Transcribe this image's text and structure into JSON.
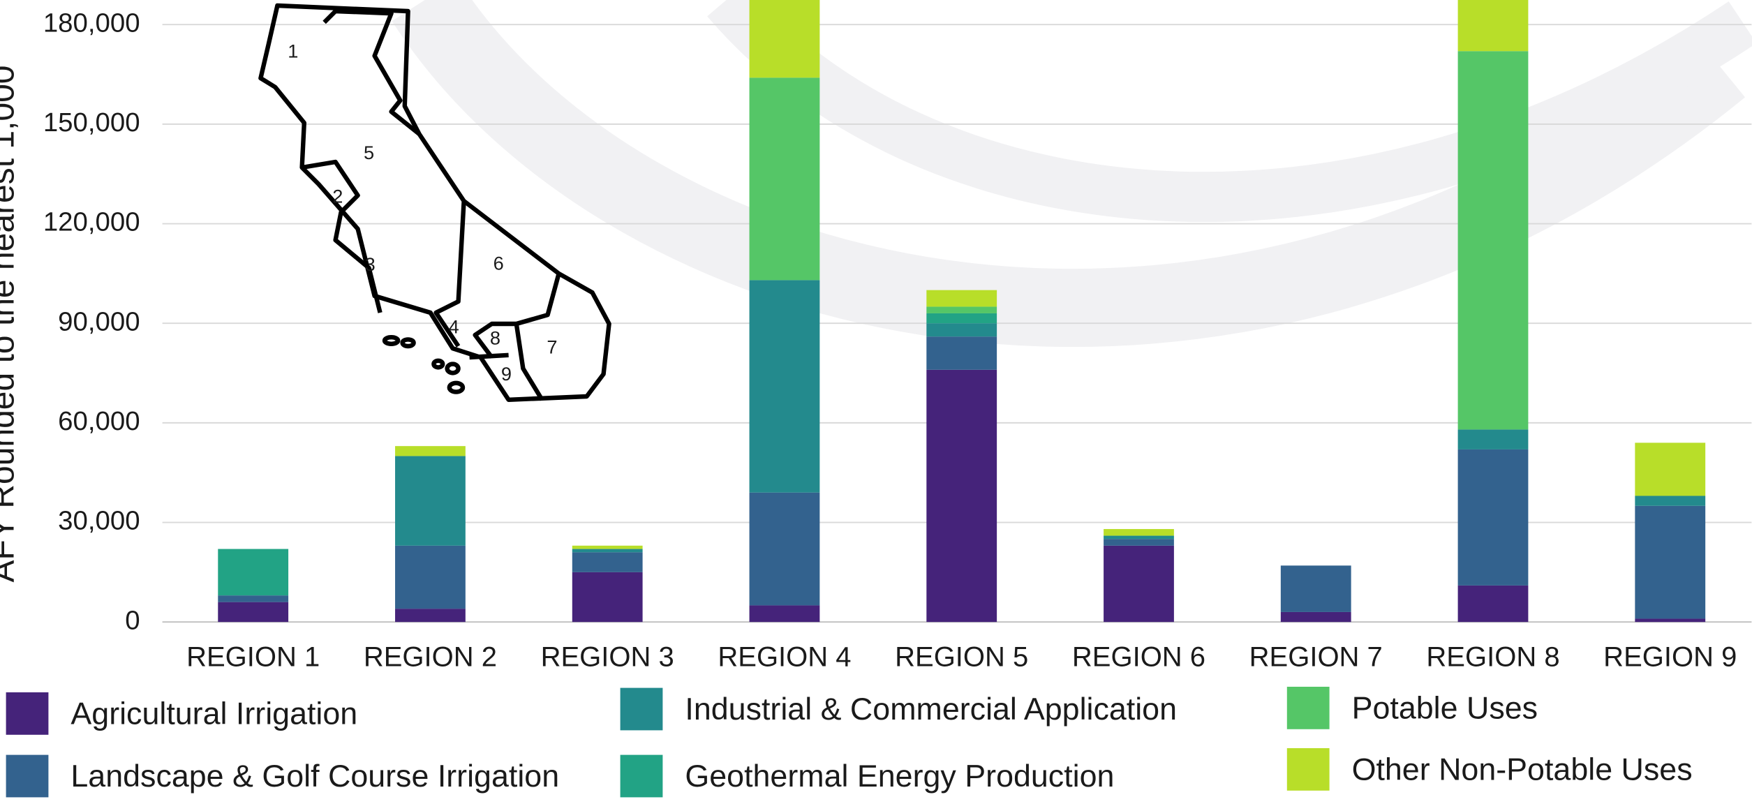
{
  "chart_data": {
    "type": "stacked_bar",
    "y_label": "AFY Rounded to the nearest 1,000",
    "categories": [
      "REGION 1",
      "REGION 2",
      "REGION 3",
      "REGION 4",
      "REGION 5",
      "REGION 6",
      "REGION 7",
      "REGION 8",
      "REGION 9"
    ],
    "series": [
      {
        "name": "Agricultural Irrigation",
        "color": "#45237a",
        "values": [
          6000,
          4000,
          15000,
          5000,
          76000,
          23000,
          3000,
          11000,
          1000
        ]
      },
      {
        "name": "Landscape & Golf Course Irrigation",
        "color": "#33628e",
        "values": [
          2000,
          19000,
          6000,
          34000,
          10000,
          2000,
          14000,
          41000,
          34000
        ]
      },
      {
        "name": "Industrial & Commercial Application",
        "color": "#238a8d",
        "values": [
          0,
          27000,
          1000,
          64000,
          4000,
          1000,
          0,
          6000,
          3000
        ]
      },
      {
        "name": "Geothermal Energy Production",
        "color": "#22a385",
        "values": [
          14000,
          0,
          0,
          0,
          3000,
          0,
          0,
          0,
          0
        ]
      },
      {
        "name": "Potable Uses",
        "color": "#55c667",
        "values": [
          0,
          0,
          0,
          61000,
          2000,
          0,
          0,
          114000,
          0
        ]
      },
      {
        "name": "Other Non-Potable Uses",
        "color": "#b8de29",
        "values": [
          0,
          3000,
          1000,
          25000,
          5000,
          2000,
          0,
          20000,
          16000
        ]
      }
    ],
    "ylim": [
      0,
      187000
    ],
    "yticks": [
      0,
      {
        "value": 30000,
        "label": "30,000"
      },
      {
        "value": 60000,
        "label": "60,000"
      },
      {
        "value": 90000,
        "label": "90,000"
      },
      {
        "value": 120000,
        "label": "120,000"
      },
      {
        "value": 150000,
        "label": "150,000"
      },
      {
        "value": 180000,
        "label": "180,000"
      }
    ],
    "grid": true,
    "legend": "bottom",
    "map_labels": [
      "1",
      "5",
      "2",
      "3",
      "6",
      "4",
      "8",
      "7",
      "9"
    ]
  }
}
